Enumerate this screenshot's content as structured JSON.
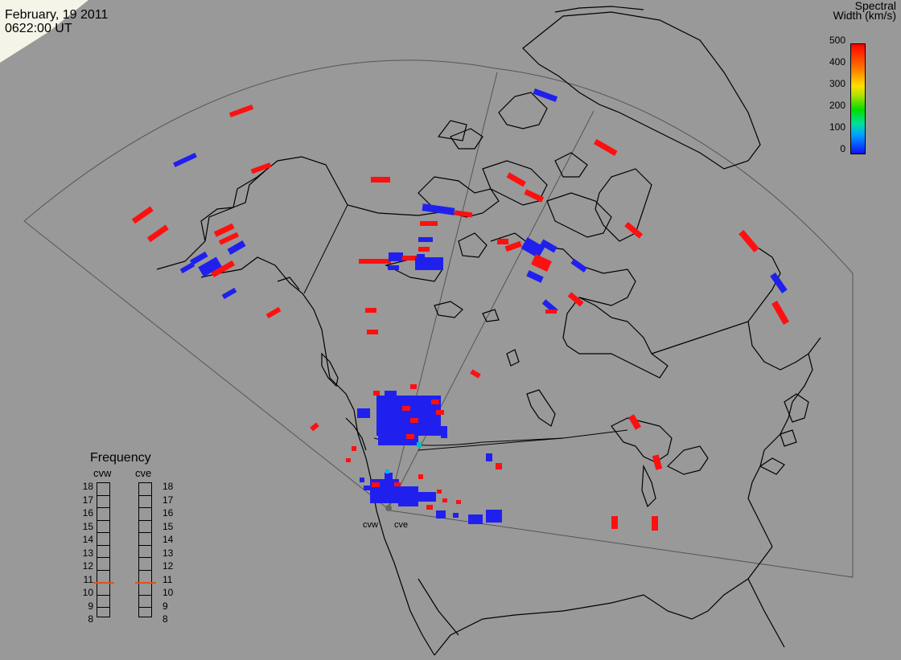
{
  "header": {
    "date": "February, 19 2011",
    "time": "0622:00 UT"
  },
  "colorbar": {
    "title_line1": "Spectral",
    "title_line2": "Width (km/s)",
    "ticks": [
      "500",
      "400",
      "300",
      "200",
      "100",
      "0"
    ],
    "range": [
      0,
      500
    ]
  },
  "frequency": {
    "title": "Frequency",
    "radars": [
      {
        "name": "cvw",
        "value_mhz": 10.9
      },
      {
        "name": "cve",
        "value_mhz": 10.9
      }
    ],
    "scale": [
      "18",
      "17",
      "16",
      "15",
      "14",
      "13",
      "12",
      "11",
      "10",
      "9",
      "8"
    ]
  },
  "radar_sites": {
    "west_label": "cvw",
    "east_label": "cve"
  },
  "colors": {
    "background": "#999999",
    "low_width": "#2020ee",
    "high_width": "#ff1010",
    "mid_width": "#00c0c0",
    "coast": "#000000",
    "fov": "#555555"
  }
}
